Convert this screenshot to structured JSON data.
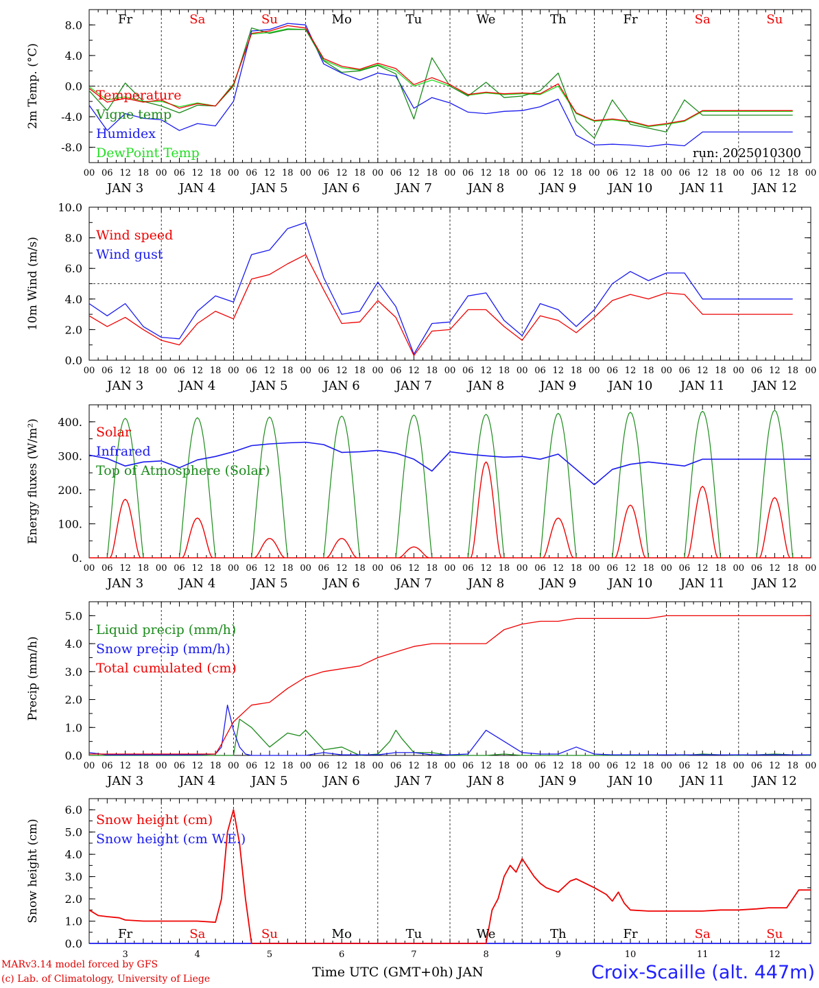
{
  "footer": {
    "model_credit": "MARv3.14 model forced by GFS",
    "lab_credit": "(c) Lab. of Climatology, University of Liege",
    "station": "Croix-Scaille (alt. 447m)",
    "xaxis_title": "Time UTC (GMT+0h) JAN"
  },
  "colors": {
    "red": "#ee0000",
    "green": "#1a8a1a",
    "lightgreen": "#22dd22",
    "blue": "#1a1aee",
    "weekend": "#ee0000",
    "weekday": "#000000"
  },
  "days": {
    "names": [
      "Fr",
      "Sa",
      "Su",
      "Mo",
      "Tu",
      "We",
      "Th",
      "Fr",
      "Sa",
      "Su"
    ],
    "weekend": [
      false,
      true,
      true,
      false,
      false,
      false,
      false,
      false,
      true,
      true
    ],
    "date_labels": [
      "JAN  3",
      "JAN  4",
      "JAN  5",
      "JAN  6",
      "JAN  7",
      "JAN  8",
      "JAN  9",
      "JAN 10",
      "JAN 11",
      "JAN 12"
    ],
    "bottom_numbers": [
      "3",
      "4",
      "5",
      "6",
      "7",
      "8",
      "9",
      "10",
      "11",
      "12"
    ],
    "hour_ticks": [
      "00",
      "06",
      "12",
      "18"
    ],
    "final_tick": "00"
  },
  "chart_data": [
    {
      "type": "line",
      "id": "temp",
      "ylabel": "2m Temp. (°C)",
      "ylim": [
        -10,
        10
      ],
      "yticks": [
        -8,
        -4,
        0,
        4,
        8
      ],
      "ytick_labels": [
        "-8.0",
        "-4.0",
        "0.0",
        "4.0",
        "8.0"
      ],
      "ref_line": 0,
      "annotation": "run: 2025010300",
      "x_unit": "hours from JAN 3 00 UTC",
      "x": [
        0,
        6,
        12,
        18,
        24,
        30,
        36,
        42,
        48,
        54,
        60,
        66,
        72,
        78,
        84,
        90,
        96,
        102,
        108,
        114,
        120,
        126,
        132,
        138,
        144,
        150,
        156,
        162,
        168,
        174,
        180,
        186,
        192,
        198,
        204,
        210,
        216,
        222,
        228,
        234
      ],
      "series": [
        {
          "name": "Temperature",
          "color": "red",
          "values": [
            -0.3,
            -2.1,
            -1.6,
            -2.1,
            -1.8,
            -2.9,
            -2.3,
            -2.6,
            0.2,
            6.9,
            7.2,
            7.9,
            7.6,
            3.6,
            2.6,
            2.2,
            3.0,
            2.3,
            0.2,
            1.1,
            0.2,
            -1.1,
            -0.8,
            -1.0,
            -0.9,
            -1.0,
            0.3,
            -3.5,
            -4.5,
            -4.3,
            -4.6,
            -5.2,
            -4.9,
            -4.5,
            -3.2,
            -3.2,
            -3.2,
            -3.2,
            -3.2,
            -3.2
          ]
        },
        {
          "name": "Vigne temp",
          "color": "green",
          "values": [
            -0.6,
            -3.2,
            0.4,
            -2.0,
            -2.6,
            -3.5,
            -2.5,
            -2.6,
            0.0,
            7.6,
            6.9,
            7.4,
            7.4,
            3.3,
            1.8,
            2.0,
            2.7,
            1.6,
            -4.3,
            3.7,
            0.0,
            -1.3,
            0.5,
            -1.5,
            -1.3,
            -0.6,
            1.7,
            -4.6,
            -6.8,
            -1.8,
            -5.0,
            -5.5,
            -6.0,
            -1.8,
            -3.8,
            -3.8,
            -3.8,
            -3.8,
            -3.8,
            -3.8
          ]
        },
        {
          "name": "Humidex",
          "color": "blue",
          "values": [
            -2.5,
            -5.8,
            -3.6,
            -4.2,
            -4.4,
            -5.8,
            -4.9,
            -5.2,
            -2.0,
            7.2,
            7.4,
            8.2,
            8.0,
            2.9,
            1.7,
            0.8,
            1.7,
            1.3,
            -2.9,
            -1.5,
            -2.2,
            -3.4,
            -3.6,
            -3.3,
            -3.2,
            -2.7,
            -1.7,
            -6.4,
            -7.7,
            -7.6,
            -7.7,
            -7.9,
            -7.6,
            -7.8,
            -6.0,
            -6.0,
            -6.0,
            -6.0,
            -6.0,
            -6.0
          ]
        },
        {
          "name": "DewPoint Temp",
          "color": "lightgreen",
          "values": [
            -0.1,
            -1.8,
            -1.4,
            -2.0,
            -2.0,
            -2.7,
            -2.2,
            -2.6,
            0.3,
            6.8,
            7.0,
            7.5,
            7.4,
            3.4,
            2.4,
            2.1,
            2.8,
            2.0,
            0.0,
            0.8,
            0.0,
            -1.2,
            -0.9,
            -1.1,
            -1.0,
            -1.1,
            0.0,
            -3.6,
            -4.6,
            -4.4,
            -4.7,
            -5.3,
            -5.0,
            -4.6,
            -3.3,
            -3.3,
            -3.3,
            -3.3,
            -3.3,
            -3.3
          ]
        }
      ]
    },
    {
      "type": "line",
      "id": "wind",
      "ylabel": "10m Wind (m/s)",
      "ylim": [
        0,
        10
      ],
      "yticks": [
        0,
        2,
        4,
        6,
        8,
        10
      ],
      "ytick_labels": [
        "0.0",
        "2.0",
        "4.0",
        "6.0",
        "8.0",
        "10.0"
      ],
      "ref_line": 5,
      "x_unit": "hours from JAN 3 00 UTC",
      "x": [
        0,
        6,
        12,
        18,
        24,
        30,
        36,
        42,
        48,
        54,
        60,
        66,
        72,
        78,
        84,
        90,
        96,
        102,
        108,
        114,
        120,
        126,
        132,
        138,
        144,
        150,
        156,
        162,
        168,
        174,
        180,
        186,
        192,
        198,
        204,
        210,
        216,
        222,
        228,
        234
      ],
      "series": [
        {
          "name": "Wind speed",
          "color": "red",
          "values": [
            2.9,
            2.2,
            2.8,
            2.0,
            1.3,
            1.0,
            2.4,
            3.2,
            2.7,
            5.3,
            5.6,
            6.3,
            6.9,
            4.6,
            2.4,
            2.5,
            3.9,
            2.8,
            0.3,
            1.9,
            2.0,
            3.3,
            3.3,
            2.2,
            1.3,
            2.9,
            2.6,
            1.8,
            2.8,
            3.9,
            4.3,
            4.0,
            4.4,
            4.3,
            3.0,
            3.0,
            3.0,
            3.0,
            3.0,
            3.0
          ]
        },
        {
          "name": "Wind gust",
          "color": "blue",
          "values": [
            3.7,
            2.9,
            3.7,
            2.2,
            1.5,
            1.4,
            3.2,
            4.2,
            3.8,
            6.9,
            7.2,
            8.6,
            9.0,
            5.4,
            3.0,
            3.2,
            5.1,
            3.5,
            0.4,
            2.4,
            2.5,
            4.2,
            4.4,
            2.6,
            1.6,
            3.7,
            3.3,
            2.2,
            3.3,
            5.0,
            5.8,
            5.2,
            5.7,
            5.7,
            4.0,
            4.0,
            4.0,
            4.0,
            4.0,
            4.0
          ]
        }
      ]
    },
    {
      "type": "line",
      "id": "flux",
      "ylabel": "Energy fluxes (W/m²)",
      "ylim": [
        0,
        450
      ],
      "yticks": [
        0,
        100,
        200,
        300,
        400
      ],
      "ytick_labels": [
        "0.",
        "100.",
        "200.",
        "300.",
        "400."
      ],
      "x_unit": "hours from JAN 3 00 UTC",
      "infrared": {
        "name": "Infrared",
        "color": "blue",
        "x": [
          0,
          6,
          12,
          18,
          24,
          30,
          36,
          42,
          48,
          54,
          60,
          66,
          72,
          78,
          84,
          90,
          96,
          102,
          108,
          114,
          120,
          126,
          132,
          138,
          144,
          150,
          156,
          162,
          168,
          174,
          180,
          186,
          192,
          198,
          204,
          210,
          216,
          222,
          228,
          234,
          240
        ],
        "values": [
          302,
          292,
          270,
          282,
          285,
          265,
          288,
          298,
          312,
          330,
          335,
          338,
          340,
          333,
          310,
          312,
          316,
          308,
          290,
          255,
          312,
          305,
          300,
          296,
          298,
          290,
          305,
          260,
          215,
          260,
          275,
          282,
          276,
          270,
          290,
          290,
          290,
          290,
          290,
          290,
          290
        ]
      },
      "solar_days": [
        {
          "noon": 12,
          "toa_peak": 410,
          "solar_peak": 172
        },
        {
          "noon": 36,
          "toa_peak": 412,
          "solar_peak": 117
        },
        {
          "noon": 60,
          "toa_peak": 414,
          "solar_peak": 57
        },
        {
          "noon": 84,
          "toa_peak": 417,
          "solar_peak": 57
        },
        {
          "noon": 108,
          "toa_peak": 420,
          "solar_peak": 32
        },
        {
          "noon": 132,
          "toa_peak": 422,
          "solar_peak": 282
        },
        {
          "noon": 156,
          "toa_peak": 425,
          "solar_peak": 117
        },
        {
          "noon": 180,
          "toa_peak": 428,
          "solar_peak": 155
        },
        {
          "noon": 204,
          "toa_peak": 431,
          "solar_peak": 210
        },
        {
          "noon": 228,
          "toa_peak": 434,
          "solar_peak": 177
        }
      ],
      "solar_name": "Solar",
      "toa_name": "Top of Atmosphere (Solar)"
    },
    {
      "type": "line",
      "id": "precip",
      "ylabel": "Precip (mm/h)",
      "ylim": [
        0,
        5.5
      ],
      "yticks": [
        0,
        1,
        2,
        3,
        4,
        5
      ],
      "ytick_labels": [
        "0.0",
        "1.0",
        "2.0",
        "3.0",
        "4.0",
        "5.0"
      ],
      "x_unit": "hours from JAN 3 00 UTC",
      "series": [
        {
          "name": "Liquid precip (mm/h)",
          "color": "green",
          "x": [
            0,
            6,
            12,
            18,
            24,
            30,
            36,
            42,
            44,
            48,
            50,
            54,
            60,
            66,
            70,
            72,
            78,
            84,
            90,
            96,
            100,
            102,
            104,
            108,
            114,
            120,
            126,
            132,
            138,
            144,
            150,
            156,
            162,
            168,
            174,
            180,
            186,
            192,
            198,
            204,
            210,
            216,
            222,
            228,
            234,
            240
          ],
          "values": [
            0,
            0,
            0,
            0,
            0,
            0,
            0,
            0,
            0,
            0,
            1.3,
            1.0,
            0.3,
            0.8,
            0.7,
            0.9,
            0.2,
            0.3,
            0.0,
            0.05,
            0.5,
            0.9,
            0.6,
            0.1,
            0.1,
            0.0,
            0.0,
            0.0,
            0.05,
            0.0,
            0.0,
            0.0,
            0.0,
            0.0,
            0.0,
            0.0,
            0.0,
            0.02,
            0.0,
            0.05,
            0.02,
            0.0,
            0.02,
            0.05,
            0.02,
            0.0
          ]
        },
        {
          "name": "Snow precip (mm/h)",
          "color": "blue",
          "x": [
            0,
            6,
            12,
            18,
            24,
            30,
            36,
            42,
            44,
            46,
            48,
            50,
            52,
            54,
            60,
            66,
            72,
            78,
            84,
            90,
            96,
            102,
            108,
            114,
            120,
            126,
            132,
            138,
            144,
            150,
            156,
            162,
            168,
            174,
            180,
            186,
            192,
            198,
            204,
            210,
            216,
            222,
            228,
            234,
            240
          ],
          "values": [
            0.1,
            0.02,
            0.02,
            0.02,
            0.02,
            0.02,
            0.02,
            0.05,
            0.3,
            1.8,
            0.9,
            0.3,
            0.05,
            0.0,
            0.0,
            0.0,
            0.0,
            0.1,
            0.02,
            0.02,
            0.02,
            0.1,
            0.1,
            0.02,
            0.02,
            0.05,
            0.9,
            0.5,
            0.1,
            0.05,
            0.05,
            0.3,
            0.05,
            0.02,
            0.02,
            0.02,
            0.02,
            0.02,
            0.02,
            0.02,
            0.02,
            0.02,
            0.02,
            0.02,
            0.02
          ]
        },
        {
          "name": "Total cumulated (cm)",
          "color": "red",
          "x": [
            0,
            6,
            12,
            18,
            24,
            30,
            36,
            42,
            44,
            48,
            54,
            60,
            66,
            72,
            78,
            84,
            90,
            96,
            102,
            108,
            114,
            120,
            126,
            132,
            138,
            144,
            150,
            156,
            162,
            168,
            174,
            180,
            186,
            192,
            198,
            204,
            210,
            216,
            222,
            228,
            234,
            240
          ],
          "values": [
            0.05,
            0.05,
            0.05,
            0.05,
            0.05,
            0.05,
            0.05,
            0.05,
            0.4,
            1.2,
            1.8,
            1.9,
            2.4,
            2.8,
            3.0,
            3.1,
            3.2,
            3.5,
            3.7,
            3.9,
            4.0,
            4.0,
            4.0,
            4.0,
            4.5,
            4.7,
            4.8,
            4.8,
            4.9,
            4.9,
            4.9,
            4.9,
            4.9,
            5.0,
            5.0,
            5.0,
            5.0,
            5.0,
            5.0,
            5.0,
            5.0,
            5.0
          ]
        }
      ]
    },
    {
      "type": "line",
      "id": "snow",
      "ylabel": "Snow height (cm)",
      "ylim": [
        0,
        6.5
      ],
      "yticks": [
        0,
        1,
        2,
        3,
        4,
        5,
        6
      ],
      "ytick_labels": [
        "0.0",
        "1.0",
        "2.0",
        "3.0",
        "4.0",
        "5.0",
        "6.0"
      ],
      "x_unit": "hours from JAN 3 00 UTC",
      "series": [
        {
          "name": "Snow height (cm)",
          "color": "red",
          "x": [
            0,
            3,
            6,
            10,
            12,
            18,
            24,
            30,
            36,
            42,
            44,
            46,
            48,
            50,
            52,
            54,
            60,
            66,
            72,
            78,
            84,
            90,
            96,
            102,
            108,
            114,
            120,
            126,
            132,
            134,
            136,
            138,
            140,
            142,
            144,
            148,
            150,
            152,
            156,
            160,
            162,
            168,
            172,
            174,
            176,
            178,
            180,
            186,
            192,
            198,
            204,
            210,
            216,
            222,
            226,
            230,
            232,
            236,
            240
          ],
          "values": [
            1.5,
            1.25,
            1.2,
            1.15,
            1.05,
            1.0,
            1.0,
            1.0,
            1.0,
            0.95,
            2.0,
            5.0,
            6.0,
            4.5,
            2.0,
            0.0,
            0.0,
            0.0,
            0.0,
            0.0,
            0.0,
            0.0,
            0.0,
            0.0,
            0.0,
            0.0,
            0.0,
            0.0,
            0.0,
            1.5,
            2.0,
            3.0,
            3.5,
            3.2,
            3.8,
            3.0,
            2.7,
            2.5,
            2.3,
            2.8,
            2.9,
            2.5,
            2.2,
            1.9,
            2.3,
            1.8,
            1.5,
            1.45,
            1.45,
            1.45,
            1.45,
            1.5,
            1.5,
            1.55,
            1.6,
            1.6,
            1.6,
            2.4,
            2.4
          ]
        },
        {
          "name": "Snow height (cm W.E.)",
          "color": "blue",
          "x": [
            0,
            240
          ],
          "values": [
            0.0,
            0.0
          ]
        }
      ]
    }
  ]
}
